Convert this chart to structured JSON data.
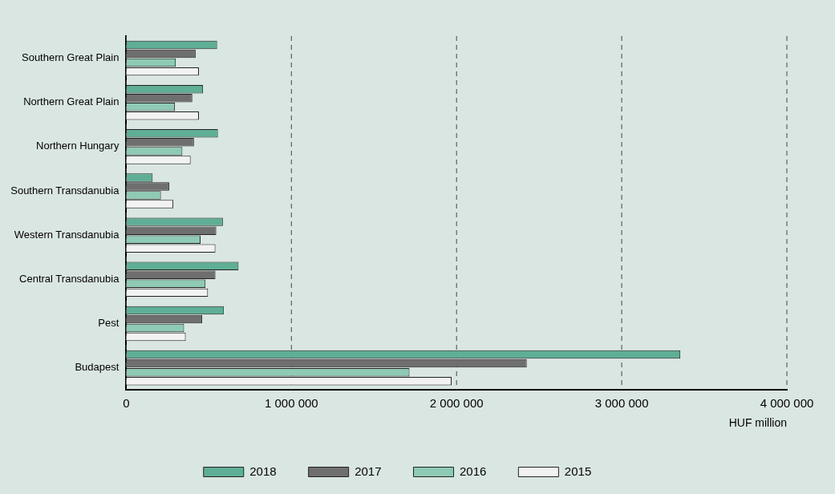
{
  "chart_data": {
    "type": "bar",
    "orientation": "horizontal",
    "xlabel": "HUF million",
    "categories": [
      "Southern Great Plain",
      "Northern Great Plain",
      "Northern Hungary",
      "Southern Transdanubia",
      "Western Transdanubia",
      "Central Transdanubia",
      "Pest",
      "Budapest"
    ],
    "series": [
      {
        "name": "2018",
        "color": "#5fae96",
        "values": [
          550000,
          465000,
          555000,
          160000,
          585000,
          680000,
          590000,
          3355000
        ]
      },
      {
        "name": "2017",
        "color": "#6f6f6f",
        "values": [
          420000,
          400000,
          410000,
          260000,
          545000,
          540000,
          460000,
          2425000
        ]
      },
      {
        "name": "2016",
        "color": "#8fcab5",
        "values": [
          300000,
          295000,
          340000,
          210000,
          450000,
          480000,
          350000,
          1715000
        ]
      },
      {
        "name": "2015",
        "color": "#f2f2f2",
        "values": [
          440000,
          440000,
          390000,
          285000,
          540000,
          495000,
          360000,
          1970000
        ]
      }
    ],
    "xlim": [
      0,
      4000000
    ],
    "xticks": [
      0,
      {
        "value": 1000000,
        "label": "1 000 000"
      },
      {
        "value": 2000000,
        "label": "2 000 000"
      },
      {
        "value": 3000000,
        "label": "3 000 000"
      },
      {
        "value": 4000000,
        "label": "4 000 000"
      }
    ],
    "grid": "x",
    "line_style": "dashed",
    "legend": "bottom"
  }
}
